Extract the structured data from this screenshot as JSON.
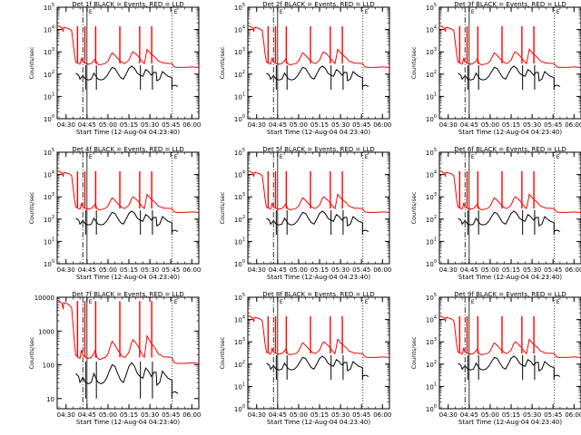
{
  "chart_data": {
    "type": "line",
    "layout": "3x3 grid of panels",
    "x_label": "Start Time (12-Aug-04 04:23:40)",
    "y_label": "Counts/sec",
    "x_ticks": [
      "04:30",
      "04:45",
      "05:00",
      "05:15",
      "05:30",
      "05:45",
      "06:00"
    ],
    "x_range_minutes_after_0430": [
      -6.33,
      95
    ],
    "y_scale": "log",
    "series_colors": {
      "events": "#000000",
      "lld": "#ff0000"
    },
    "markers": {
      "dash_dot_line": "04:42",
      "solid_line": "04:45",
      "dotted_line": "05:46",
      "tag": "E"
    },
    "panels": [
      {
        "title": "Det 1f BLACK = Events, RED = LLD",
        "y_range": [
          1,
          100000
        ],
        "y_tick_labels": [
          "10^0",
          "10^1",
          "10^2",
          "10^3",
          "10^4",
          "10^5"
        ],
        "events_level": 1,
        "lld_level": 1,
        "yaxis_label": "Counts/sec"
      },
      {
        "title": "Det 2f BLACK = Events, RED = LLD",
        "y_range": [
          1,
          100000
        ],
        "y_tick_labels": [
          "10^0",
          "10^1",
          "10^2",
          "10^3",
          "10^4",
          "10^5"
        ],
        "events_level": 1,
        "lld_level": 1,
        "yaxis_label": "Counts/sec"
      },
      {
        "title": "Det 3f BLACK = Events, RED = LLD",
        "y_range": [
          1,
          100000
        ],
        "y_tick_labels": [
          "10^0",
          "10^1",
          "10^2",
          "10^3",
          "10^4",
          "10^5"
        ],
        "events_level": 1,
        "lld_level": 1,
        "yaxis_label": "Counts/sec"
      },
      {
        "title": "Det 4f BLACK = Events, RED = LLD",
        "y_range": [
          1,
          100000
        ],
        "y_tick_labels": [
          "10^0",
          "10^1",
          "10^2",
          "10^3",
          "10^4",
          "10^5"
        ],
        "events_level": 1,
        "lld_level": 1,
        "yaxis_label": "Counts/sec"
      },
      {
        "title": "Det 5f BLACK = Events, RED = LLD",
        "y_range": [
          1,
          100000
        ],
        "y_tick_labels": [
          "10^0",
          "10^1",
          "10^2",
          "10^3",
          "10^4",
          "10^5"
        ],
        "events_level": 1,
        "lld_level": 1,
        "yaxis_label": "Counts/sec"
      },
      {
        "title": "Det 6f BLACK = Events, RED = LLD",
        "y_range": [
          1,
          100000
        ],
        "y_tick_labels": [
          "10^0",
          "10^1",
          "10^2",
          "10^3",
          "10^4",
          "10^5"
        ],
        "events_level": 1,
        "lld_level": 1,
        "yaxis_label": "Counts/sec"
      },
      {
        "title": "Det 7f BLACK = Events, RED = LLD",
        "y_range": [
          5,
          10000
        ],
        "y_tick_labels": [
          "10",
          "100",
          "1000",
          "10000"
        ],
        "events_level": 0.5,
        "lld_level": 0.55,
        "yaxis_label": "Counts/sec"
      },
      {
        "title": "Det 8f BLACK = Events, RED = LLD",
        "y_range": [
          1,
          100000
        ],
        "y_tick_labels": [
          "10^0",
          "10^1",
          "10^2",
          "10^3",
          "10^4",
          "10^5"
        ],
        "events_level": 1,
        "lld_level": 1,
        "yaxis_label": "Counts/sec"
      },
      {
        "title": "Det 9f BLACK = Events, RED = LLD",
        "y_range": [
          1,
          100000
        ],
        "y_tick_labels": [
          "10^0",
          "10^1",
          "10^2",
          "10^3",
          "10^4",
          "10^5"
        ],
        "events_level": 1,
        "lld_level": 1,
        "yaxis_label": "Counts/sec"
      }
    ],
    "lld_profile": [
      [
        -6.3,
        15000
      ],
      [
        -5,
        14000
      ],
      [
        -3,
        12000
      ],
      [
        -2,
        8000
      ],
      [
        -1.8,
        12500
      ],
      [
        0,
        12000
      ],
      [
        2,
        11000
      ],
      [
        4,
        9000
      ],
      [
        5,
        3000
      ],
      [
        6,
        800
      ],
      [
        7,
        350
      ],
      [
        9,
        300
      ],
      [
        10,
        280
      ],
      [
        11,
        500
      ],
      [
        12,
        350
      ],
      [
        14,
        300
      ],
      [
        16,
        280
      ],
      [
        18,
        300
      ],
      [
        20,
        400
      ],
      [
        21,
        500
      ],
      [
        22,
        300
      ],
      [
        24,
        260
      ],
      [
        26,
        280
      ],
      [
        28,
        300
      ],
      [
        30,
        380
      ],
      [
        32,
        700
      ],
      [
        33,
        900
      ],
      [
        34,
        800
      ],
      [
        35,
        700
      ],
      [
        37,
        500
      ],
      [
        40,
        330
      ],
      [
        42,
        300
      ],
      [
        45,
        420
      ],
      [
        47,
        850
      ],
      [
        48,
        1000
      ],
      [
        50,
        800
      ],
      [
        52,
        600
      ],
      [
        54,
        400
      ],
      [
        56,
        300
      ],
      [
        57,
        600
      ],
      [
        58,
        1300
      ],
      [
        60,
        900
      ],
      [
        62,
        700
      ],
      [
        64,
        550
      ],
      [
        66,
        380
      ],
      [
        68,
        350
      ],
      [
        70,
        310
      ],
      [
        72,
        310
      ],
      [
        75.7,
        300
      ],
      [
        77.5,
        210
      ],
      [
        80,
        200
      ],
      [
        85,
        200
      ],
      [
        90,
        210
      ],
      [
        95,
        200
      ]
    ],
    "events_profile": [
      [
        7,
        110
      ],
      [
        9,
        90
      ],
      [
        10,
        60
      ],
      [
        12,
        85
      ],
      [
        14,
        60
      ],
      [
        16,
        55
      ],
      [
        18,
        60
      ],
      [
        20,
        110
      ],
      [
        22,
        70
      ],
      [
        23,
        60
      ],
      [
        25,
        55
      ],
      [
        27,
        60
      ],
      [
        29,
        80
      ],
      [
        31,
        130
      ],
      [
        33,
        200
      ],
      [
        35,
        180
      ],
      [
        37,
        110
      ],
      [
        39,
        70
      ],
      [
        41,
        60
      ],
      [
        43,
        100
      ],
      [
        45,
        180
      ],
      [
        47,
        230
      ],
      [
        49,
        180
      ],
      [
        51,
        110
      ],
      [
        53,
        90
      ],
      [
        55,
        80
      ],
      [
        57,
        160
      ],
      [
        59,
        130
      ],
      [
        61,
        90
      ],
      [
        63,
        120
      ],
      [
        64.5,
        120
      ],
      [
        65,
        50
      ],
      [
        67,
        60
      ],
      [
        69,
        130
      ],
      [
        71,
        100
      ],
      [
        73,
        80
      ],
      [
        75.7,
        70
      ],
      [
        75.7,
        20
      ]
    ],
    "events_after_gap": [
      [
        76,
        30
      ],
      [
        78,
        32
      ],
      [
        80,
        28
      ]
    ],
    "lld_spikes": [
      8.2,
      13.5,
      21.2,
      38.5,
      52.7,
      61.3
    ],
    "events_spikes": [
      13.5,
      21.2,
      52.7,
      61.3
    ]
  }
}
